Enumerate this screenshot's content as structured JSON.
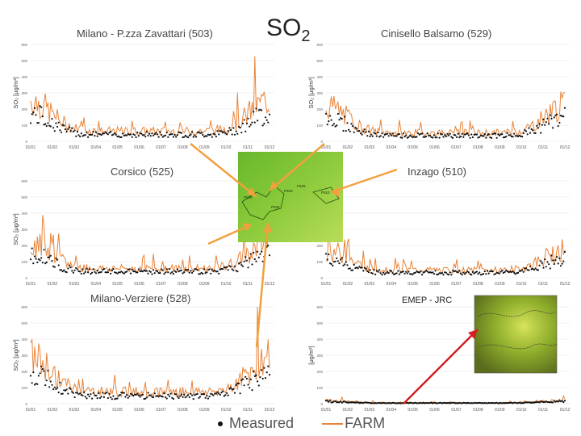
{
  "title": {
    "main": "SO",
    "sub": "2"
  },
  "legend": {
    "measured": "Measured",
    "farm": "FARM"
  },
  "emep_label": "EMEP - JRC",
  "ylabel": "SO₂ [μg/m³]",
  "ylabel_short": "SO",
  "ylabel_emep": "[μg/m³]",
  "yticks": [
    "0",
    "100",
    "200",
    "300",
    "400",
    "500",
    "600"
  ],
  "xticks": [
    "01/01",
    "01/02",
    "01/03",
    "01/04",
    "01/05",
    "01/06",
    "01/07",
    "01/08",
    "01/09",
    "01/10",
    "01/11",
    "01/12"
  ],
  "map_labels": [
    "P503",
    "P510",
    "P525",
    "P528",
    "P529"
  ],
  "chart_data": [
    {
      "type": "line",
      "title": "Milano - P.zza Zavattari (503)",
      "ylim": [
        0,
        600
      ],
      "series": [
        {
          "name": "Measured"
        },
        {
          "name": "FARM"
        }
      ]
    },
    {
      "type": "line",
      "title": "Cinisello Balsamo (529)",
      "ylim": [
        0,
        600
      ],
      "series": [
        {
          "name": "Measured"
        },
        {
          "name": "FARM"
        }
      ]
    },
    {
      "type": "line",
      "title": "Corsico (525)",
      "ylim": [
        0,
        600
      ],
      "series": [
        {
          "name": "Measured"
        },
        {
          "name": "FARM"
        }
      ]
    },
    {
      "type": "line",
      "title": "Inzago (510)",
      "ylim": [
        0,
        600
      ],
      "series": [
        {
          "name": "Measured"
        },
        {
          "name": "FARM"
        }
      ]
    },
    {
      "type": "line",
      "title": "Milano-Verziere (528)",
      "ylim": [
        0,
        600
      ],
      "series": [
        {
          "name": "Measured"
        },
        {
          "name": "FARM"
        }
      ]
    },
    {
      "type": "line",
      "title": "",
      "ylim": [
        0,
        600
      ],
      "series": [
        {
          "name": "Measured"
        },
        {
          "name": "FARM"
        }
      ]
    }
  ],
  "colors": {
    "farm": "#e8843a",
    "measured": "#111111",
    "grid": "#e6e6e6",
    "arrow_orange": "#f2a03d",
    "arrow_red": "#d61f1f"
  }
}
